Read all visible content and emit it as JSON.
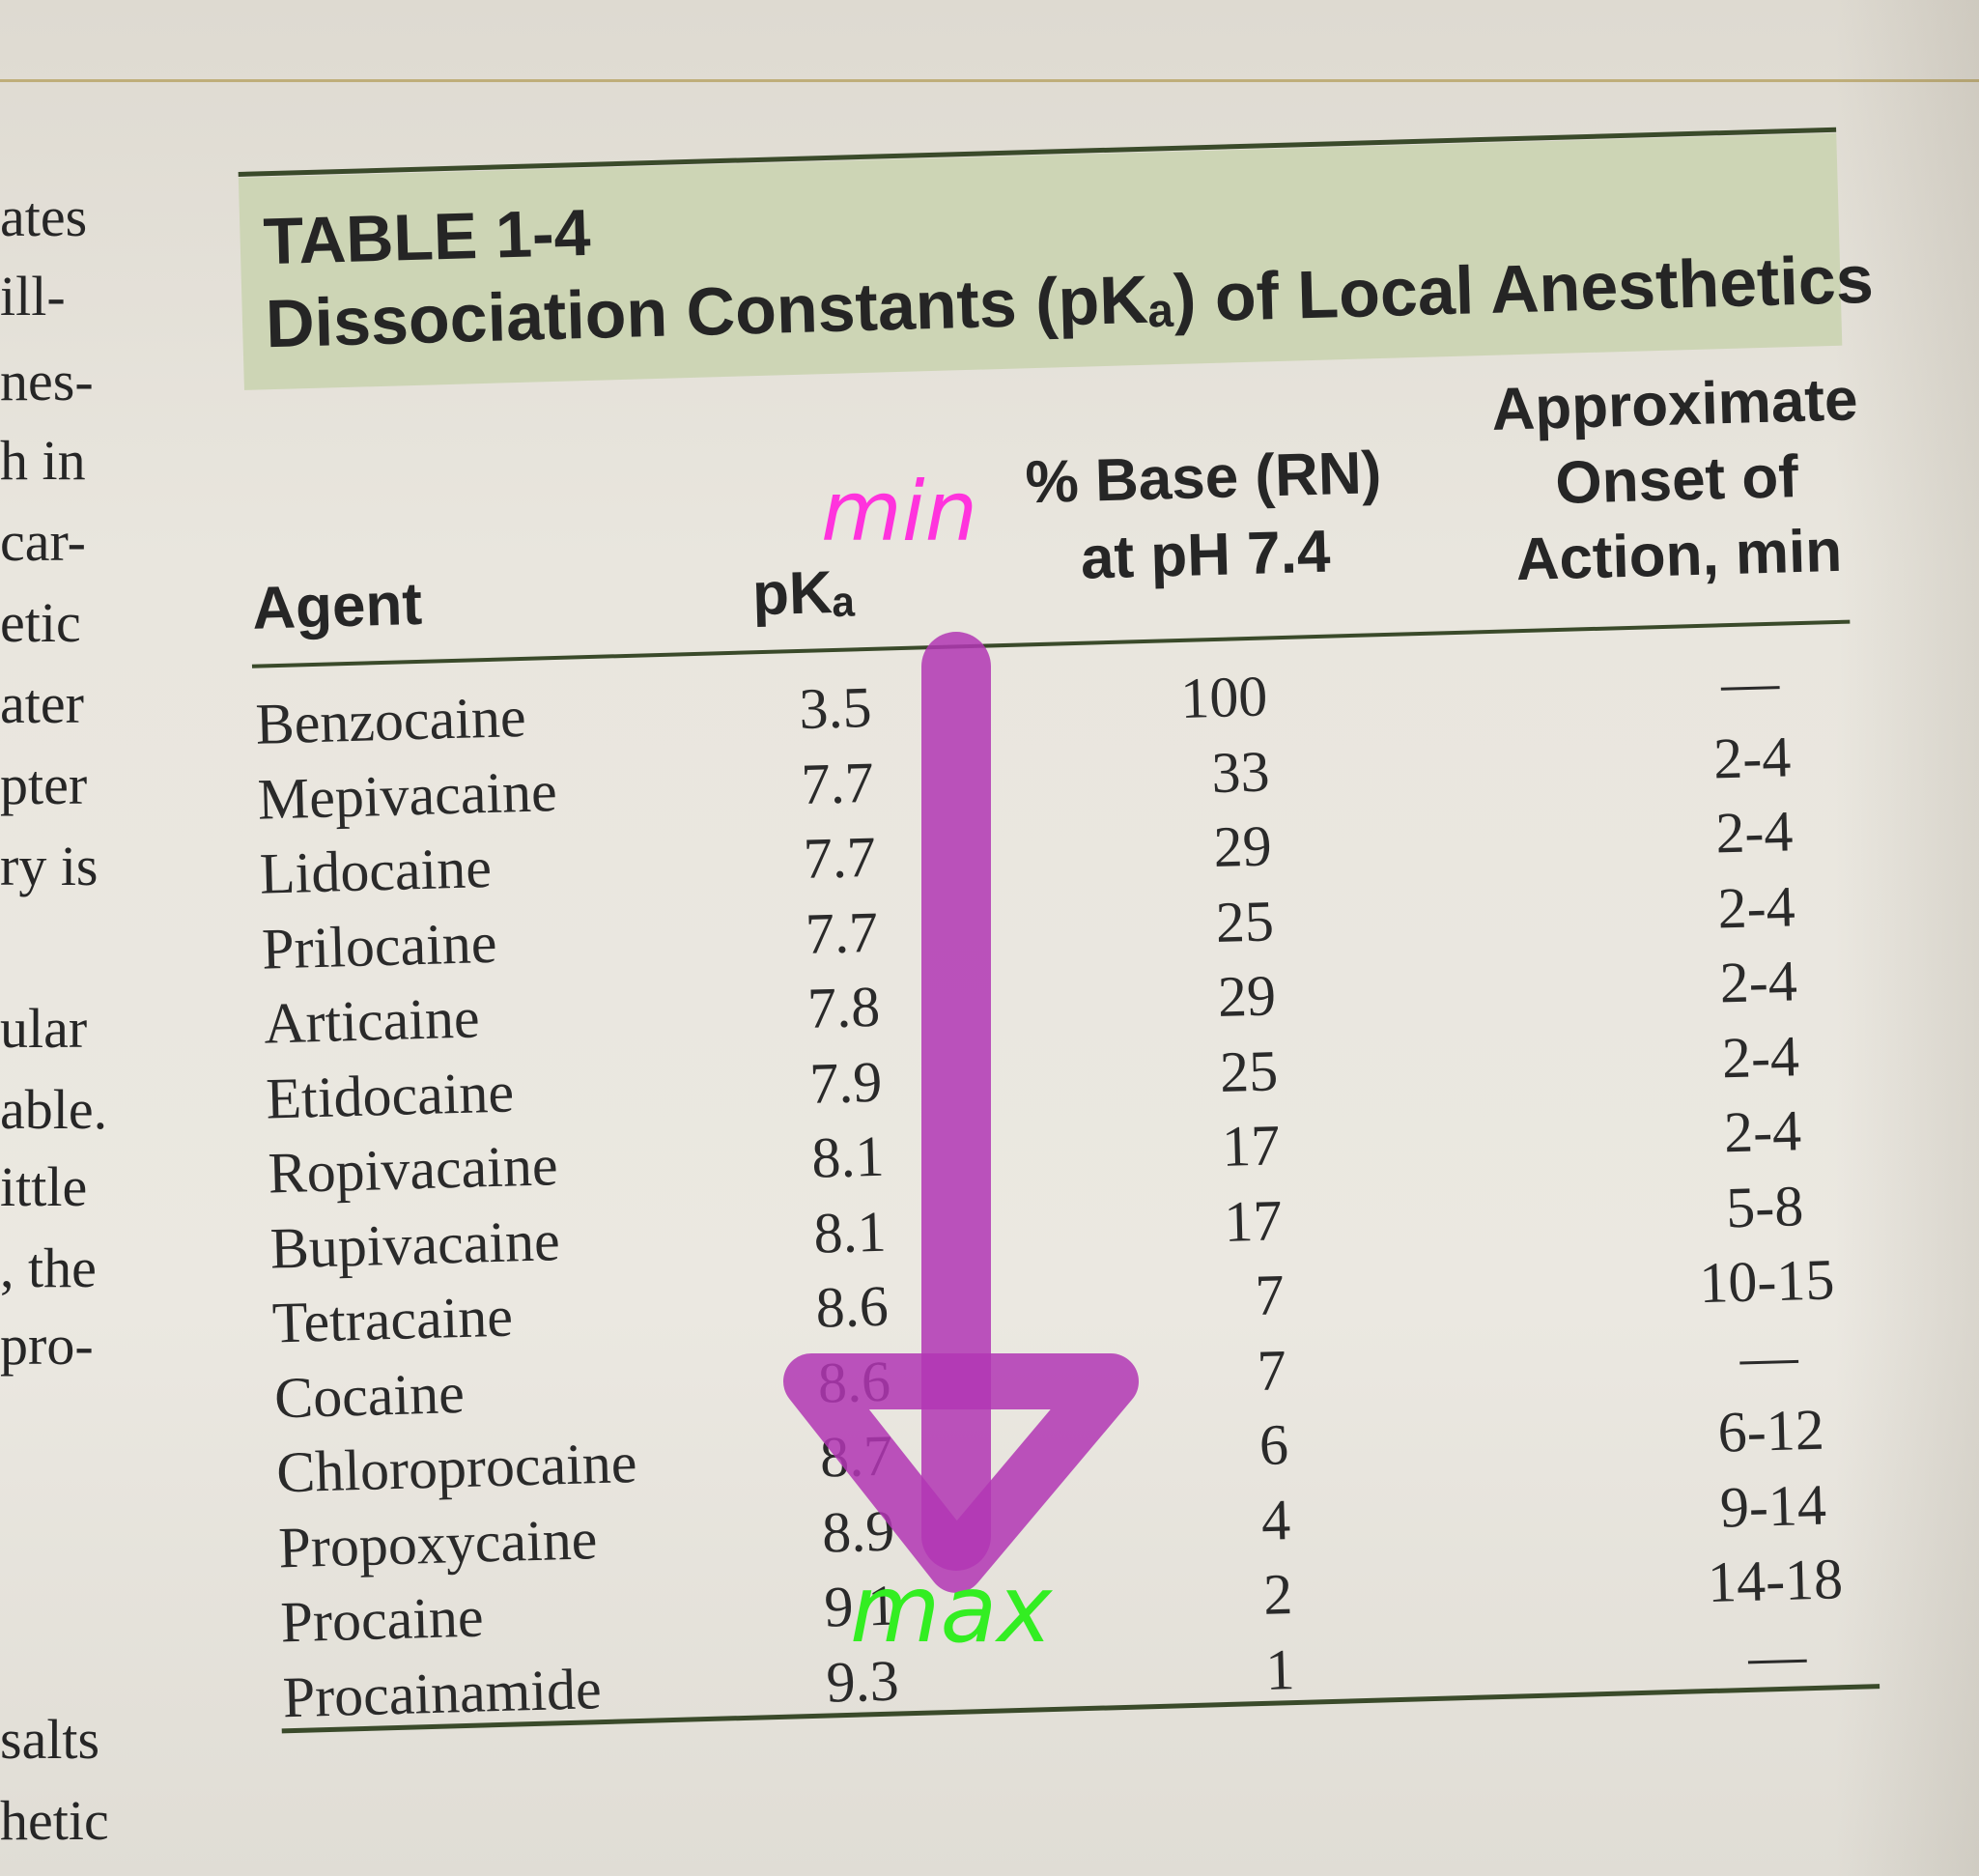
{
  "margin_fragments": [
    "ates",
    "ill-",
    "nes-",
    "h in",
    "car-",
    "etic",
    "ater",
    "pter",
    "ry is",
    "ular",
    "able.",
    "ittle",
    ", the",
    "pro-",
    "salts",
    "hetic"
  ],
  "table": {
    "label": "TABLE 1-4",
    "title": "Dissociation Constants (pKₐ) of Local Anesthetics",
    "headers": {
      "agent": "Agent",
      "pka": "pKₐ",
      "base_line1": "% Base (RN)",
      "base_line2": "at pH 7.4",
      "onset_line1": "Approximate",
      "onset_line2": "Onset of",
      "onset_line3": "Action, min"
    },
    "rows": [
      {
        "agent": "Benzocaine",
        "pka": "3.5",
        "base": "100",
        "onset": "—"
      },
      {
        "agent": "Mepivacaine",
        "pka": "7.7",
        "base": "33",
        "onset": "2-4"
      },
      {
        "agent": "Lidocaine",
        "pka": "7.7",
        "base": "29",
        "onset": "2-4"
      },
      {
        "agent": "Prilocaine",
        "pka": "7.7",
        "base": "25",
        "onset": "2-4"
      },
      {
        "agent": "Articaine",
        "pka": "7.8",
        "base": "29",
        "onset": "2-4"
      },
      {
        "agent": "Etidocaine",
        "pka": "7.9",
        "base": "25",
        "onset": "2-4"
      },
      {
        "agent": "Ropivacaine",
        "pka": "8.1",
        "base": "17",
        "onset": "2-4"
      },
      {
        "agent": "Bupivacaine",
        "pka": "8.1",
        "base": "17",
        "onset": "5-8"
      },
      {
        "agent": "Tetracaine",
        "pka": "8.6",
        "base": "7",
        "onset": "10-15"
      },
      {
        "agent": "Cocaine",
        "pka": "8.6",
        "base": "7",
        "onset": "—"
      },
      {
        "agent": "Chloroprocaine",
        "pka": "8.7",
        "base": "6",
        "onset": "6-12"
      },
      {
        "agent": "Propoxycaine",
        "pka": "8.9",
        "base": "4",
        "onset": "9-14"
      },
      {
        "agent": "Procaine",
        "pka": "9.1",
        "base": "2",
        "onset": "14-18"
      },
      {
        "agent": "Procainamide",
        "pka": "9.3",
        "base": "1",
        "onset": "—"
      }
    ]
  },
  "annotations": {
    "min_label": "min",
    "max_label": "max",
    "min_color": "#ff33dd",
    "max_color": "#33ee22",
    "arrow_color": "#b236b4"
  }
}
